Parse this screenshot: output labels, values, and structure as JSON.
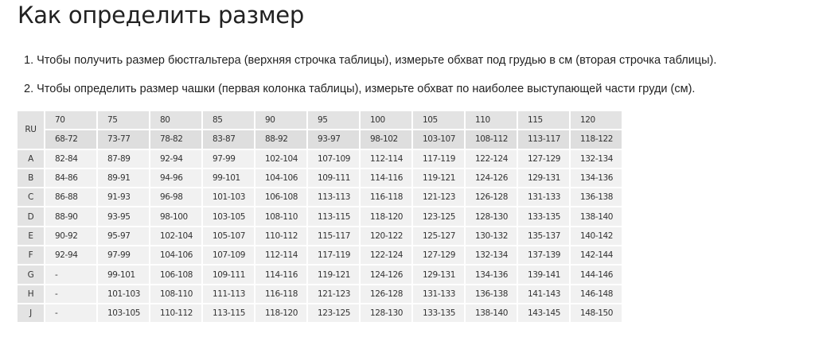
{
  "title": "Как определить размер",
  "instructions": [
    "1. Чтобы получить размер бюстгальтера (верхняя строчка таблицы), измерьте обхват под грудью в см (вторая строчка таблицы).",
    "2. Чтобы определить размер чашки (первая колонка таблицы), измерьте обхват по наиболее выступающей части груди (см)."
  ],
  "size_table": {
    "corner_label": "RU",
    "band_sizes": [
      "70",
      "75",
      "80",
      "85",
      "90",
      "95",
      "100",
      "105",
      "110",
      "115",
      "120"
    ],
    "underbust_ranges": [
      "68-72",
      "73-77",
      "78-82",
      "83-87",
      "88-92",
      "93-97",
      "98-102",
      "103-107",
      "108-112",
      "113-117",
      "118-122"
    ],
    "rows": [
      {
        "cup": "A",
        "values": [
          "82-84",
          "87-89",
          "92-94",
          "97-99",
          "102-104",
          "107-109",
          "112-114",
          "117-119",
          "122-124",
          "127-129",
          "132-134"
        ]
      },
      {
        "cup": "B",
        "values": [
          "84-86",
          "89-91",
          "94-96",
          "99-101",
          "104-106",
          "109-111",
          "114-116",
          "119-121",
          "124-126",
          "129-131",
          "134-136"
        ]
      },
      {
        "cup": "C",
        "values": [
          "86-88",
          "91-93",
          "96-98",
          "101-103",
          "106-108",
          "113-113",
          "116-118",
          "121-123",
          "126-128",
          "131-133",
          "136-138"
        ]
      },
      {
        "cup": "D",
        "values": [
          "88-90",
          "93-95",
          "98-100",
          "103-105",
          "108-110",
          "113-115",
          "118-120",
          "123-125",
          "128-130",
          "133-135",
          "138-140"
        ]
      },
      {
        "cup": "E",
        "values": [
          "90-92",
          "95-97",
          "102-104",
          "105-107",
          "110-112",
          "115-117",
          "120-122",
          "125-127",
          "130-132",
          "135-137",
          "140-142"
        ]
      },
      {
        "cup": "F",
        "values": [
          "92-94",
          "97-99",
          "104-106",
          "107-109",
          "112-114",
          "117-119",
          "122-124",
          "127-129",
          "132-134",
          "137-139",
          "142-144"
        ]
      },
      {
        "cup": "G",
        "values": [
          "-",
          "99-101",
          "106-108",
          "109-111",
          "114-116",
          "119-121",
          "124-126",
          "129-131",
          "134-136",
          "139-141",
          "144-146"
        ]
      },
      {
        "cup": "H",
        "values": [
          "-",
          "101-103",
          "108-110",
          "111-113",
          "116-118",
          "121-123",
          "126-128",
          "131-133",
          "136-138",
          "141-143",
          "146-148"
        ]
      },
      {
        "cup": "J",
        "values": [
          "-",
          "103-105",
          "110-112",
          "113-115",
          "118-120",
          "123-125",
          "128-130",
          "133-135",
          "138-140",
          "143-145",
          "148-150"
        ]
      }
    ]
  }
}
